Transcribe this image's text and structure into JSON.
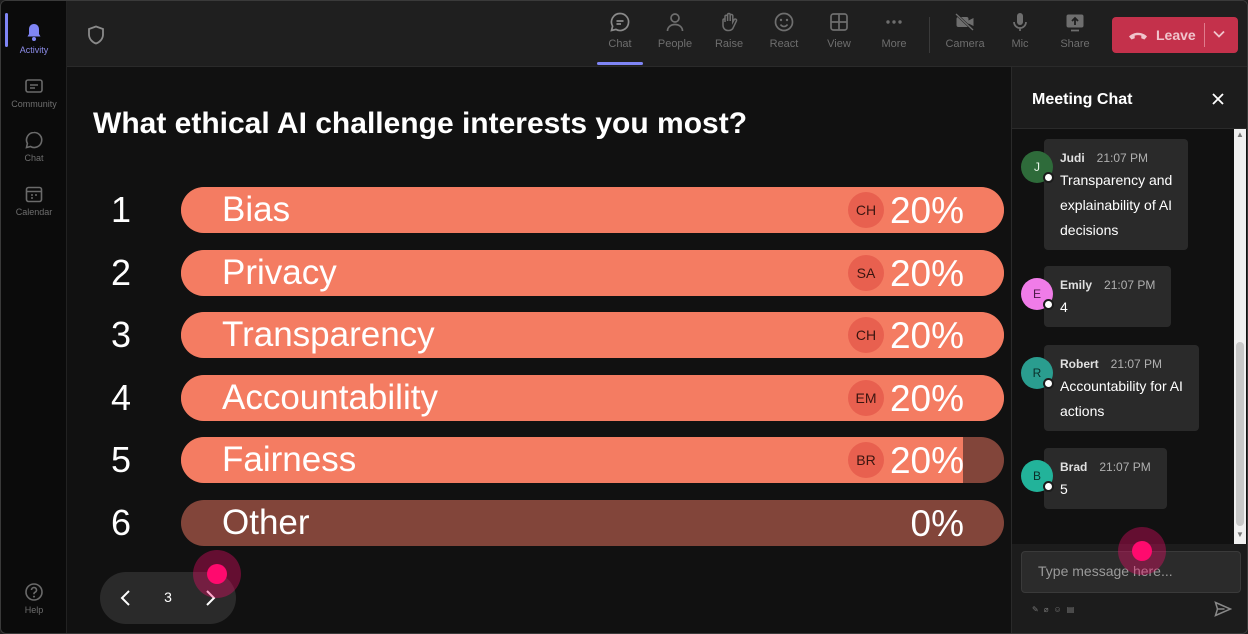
{
  "rail": {
    "items": [
      {
        "label": "Activity",
        "icon": "bell-icon",
        "active": true
      },
      {
        "label": "Community",
        "icon": "community-icon",
        "active": false
      },
      {
        "label": "Chat",
        "icon": "chat-icon",
        "active": false
      },
      {
        "label": "Calendar",
        "icon": "calendar-icon",
        "active": false
      }
    ],
    "help_label": "Help"
  },
  "toolbar": {
    "buttons": [
      {
        "label": "Chat",
        "icon": "chat-icon",
        "active": true
      },
      {
        "label": "People",
        "icon": "people-icon"
      },
      {
        "label": "Raise",
        "icon": "hand-icon"
      },
      {
        "label": "React",
        "icon": "smiley-icon"
      },
      {
        "label": "View",
        "icon": "grid-icon"
      },
      {
        "label": "More",
        "icon": "more-icon"
      },
      {
        "label": "Camera",
        "icon": "camera-off-icon"
      },
      {
        "label": "Mic",
        "icon": "mic-icon"
      },
      {
        "label": "Share",
        "icon": "share-icon"
      }
    ],
    "leave_label": "Leave",
    "leave_color": "#c4314b"
  },
  "poll": {
    "question": "What ethical AI challenge interests you most?",
    "bar_color": "#f47c62",
    "track_color": "#82453a",
    "options": [
      {
        "num": "1",
        "label": "Bias",
        "avatar": "CH",
        "percent": "20%",
        "fill": 1.0
      },
      {
        "num": "2",
        "label": "Privacy",
        "avatar": "SA",
        "percent": "20%",
        "fill": 1.0
      },
      {
        "num": "3",
        "label": "Transparency",
        "avatar": "CH",
        "percent": "20%",
        "fill": 1.0
      },
      {
        "num": "4",
        "label": "Accountability",
        "avatar": "EM",
        "percent": "20%",
        "fill": 1.0
      },
      {
        "num": "5",
        "label": "Fairness",
        "avatar": "BR",
        "percent": "20%",
        "fill": 0.95
      },
      {
        "num": "6",
        "label": "Other",
        "avatar": "",
        "percent": "0%",
        "fill": 0.0
      }
    ],
    "page": "3"
  },
  "chat": {
    "title": "Meeting Chat",
    "messages": [
      {
        "initial": "J",
        "name": "Judi",
        "time": "21:07 PM",
        "lines": [
          "Transparency and",
          "explainability of AI",
          "decisions"
        ],
        "avatar_bg": "#2e6b3a",
        "avatar_fg": "#e8f5e8"
      },
      {
        "initial": "E",
        "name": "Emily",
        "time": "21:07 PM",
        "lines": [
          "4"
        ],
        "avatar_bg": "#f07ce8",
        "avatar_fg": "#4a1a46"
      },
      {
        "initial": "R",
        "name": "Robert",
        "time": "21:07 PM",
        "lines": [
          "Accountability for AI",
          "actions"
        ],
        "avatar_bg": "#2a9d8f",
        "avatar_fg": "#0b2e2a"
      },
      {
        "initial": "B",
        "name": "Brad",
        "time": "21:07 PM",
        "lines": [
          "5"
        ],
        "avatar_bg": "#22b39a",
        "avatar_fg": "#0b2e2a"
      }
    ],
    "composer_placeholder": "Type message here..."
  }
}
